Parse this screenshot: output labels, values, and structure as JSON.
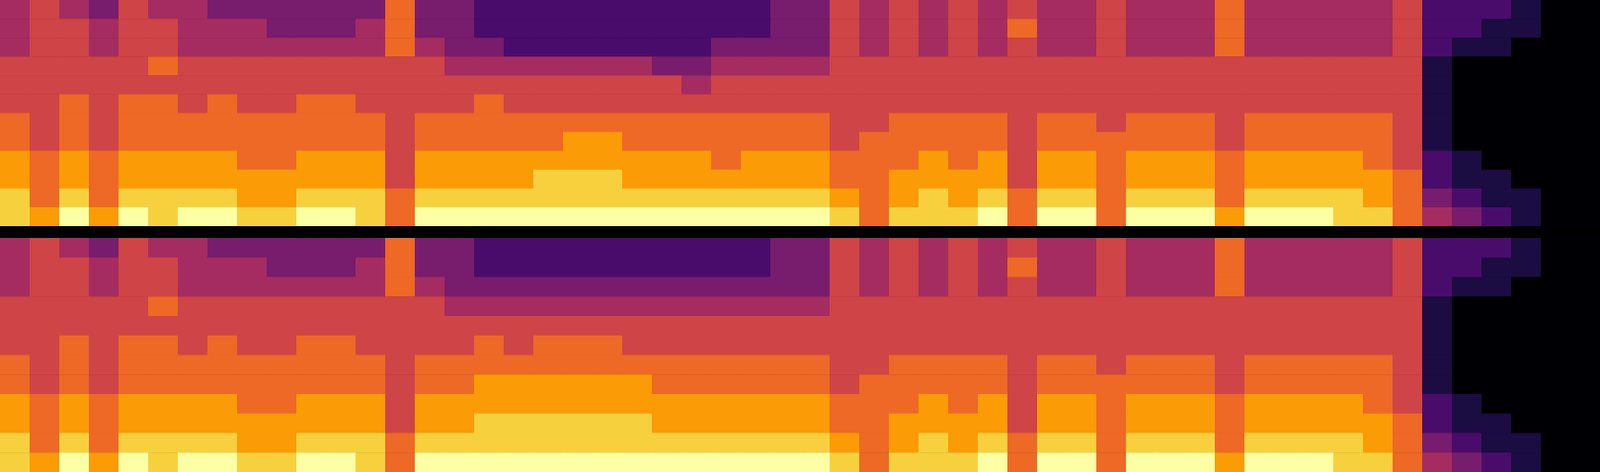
{
  "chart_data": [
    {
      "type": "heatmap",
      "tick_labels": false,
      "zlim": [
        0,
        9
      ],
      "cells": [
        [
          4,
          4,
          4,
          5,
          5,
          5,
          6,
          6,
          7,
          7,
          8,
          8
        ],
        [
          5,
          5,
          5,
          5,
          5,
          5,
          5,
          5,
          6,
          6,
          6,
          7
        ],
        [
          4,
          5,
          5,
          5,
          5,
          6,
          6,
          6,
          7,
          7,
          8,
          9
        ],
        [
          3,
          4,
          4,
          5,
          5,
          5,
          5,
          5,
          6,
          6,
          6,
          7
        ],
        [
          5,
          5,
          5,
          5,
          5,
          6,
          6,
          6,
          7,
          7,
          8,
          9
        ],
        [
          4,
          5,
          5,
          6,
          5,
          6,
          6,
          6,
          7,
          7,
          8,
          8
        ],
        [
          4,
          4,
          4,
          5,
          5,
          5,
          6,
          6,
          7,
          7,
          8,
          9
        ],
        [
          3,
          4,
          4,
          5,
          5,
          6,
          6,
          6,
          7,
          7,
          8,
          9
        ],
        [
          3,
          4,
          4,
          5,
          5,
          5,
          6,
          6,
          6,
          7,
          7,
          8
        ],
        [
          3,
          3,
          4,
          5,
          5,
          5,
          6,
          6,
          6,
          7,
          7,
          8
        ],
        [
          3,
          3,
          4,
          5,
          5,
          6,
          6,
          6,
          7,
          7,
          8,
          9
        ],
        [
          3,
          3,
          4,
          5,
          5,
          6,
          6,
          6,
          7,
          7,
          8,
          9
        ],
        [
          3,
          4,
          4,
          5,
          5,
          5,
          6,
          6,
          7,
          7,
          8,
          8
        ],
        [
          6,
          6,
          6,
          5,
          5,
          5,
          5,
          5,
          5,
          5,
          6,
          6
        ],
        [
          3,
          3,
          4,
          5,
          5,
          5,
          6,
          6,
          7,
          7,
          8,
          9
        ],
        [
          3,
          3,
          3,
          4,
          5,
          5,
          6,
          6,
          7,
          7,
          8,
          9
        ],
        [
          2,
          2,
          3,
          4,
          5,
          6,
          6,
          6,
          7,
          7,
          8,
          9
        ],
        [
          2,
          2,
          2,
          4,
          5,
          5,
          6,
          6,
          7,
          7,
          8,
          9
        ],
        [
          2,
          2,
          2,
          4,
          5,
          5,
          6,
          6,
          7,
          8,
          8,
          9
        ],
        [
          2,
          2,
          2,
          4,
          5,
          5,
          6,
          7,
          7,
          8,
          8,
          9
        ],
        [
          2,
          2,
          2,
          4,
          5,
          5,
          6,
          7,
          7,
          8,
          8,
          9
        ],
        [
          2,
          2,
          2,
          4,
          5,
          5,
          6,
          6,
          7,
          7,
          8,
          9
        ],
        [
          2,
          2,
          2,
          3,
          5,
          5,
          6,
          6,
          7,
          7,
          8,
          9
        ],
        [
          2,
          2,
          2,
          3,
          4,
          5,
          6,
          6,
          7,
          7,
          8,
          9
        ],
        [
          2,
          2,
          3,
          4,
          5,
          5,
          6,
          6,
          6,
          7,
          8,
          9
        ],
        [
          2,
          2,
          3,
          4,
          5,
          5,
          6,
          6,
          7,
          7,
          8,
          9
        ],
        [
          3,
          3,
          3,
          4,
          5,
          5,
          6,
          6,
          7,
          7,
          8,
          9
        ],
        [
          3,
          3,
          3,
          4,
          5,
          5,
          6,
          6,
          7,
          7,
          8,
          9
        ],
        [
          5,
          5,
          5,
          5,
          5,
          5,
          5,
          5,
          6,
          6,
          7,
          8
        ],
        [
          4,
          4,
          4,
          5,
          5,
          5,
          5,
          6,
          6,
          6,
          6,
          6
        ],
        [
          5,
          5,
          5,
          5,
          5,
          5,
          6,
          6,
          6,
          7,
          7,
          8
        ],
        [
          4,
          4,
          4,
          5,
          5,
          5,
          6,
          6,
          7,
          7,
          8,
          8
        ],
        [
          5,
          5,
          5,
          5,
          5,
          5,
          6,
          6,
          6,
          7,
          7,
          8
        ],
        [
          4,
          4,
          4,
          5,
          5,
          5,
          6,
          6,
          7,
          7,
          8,
          9
        ],
        [
          5,
          6,
          5,
          5,
          5,
          5,
          5,
          5,
          5,
          5,
          6,
          6
        ],
        [
          4,
          4,
          4,
          5,
          5,
          5,
          6,
          6,
          7,
          7,
          8,
          9
        ],
        [
          4,
          4,
          4,
          5,
          5,
          5,
          6,
          6,
          7,
          7,
          8,
          9
        ],
        [
          5,
          5,
          5,
          5,
          5,
          5,
          5,
          6,
          6,
          6,
          6,
          6
        ],
        [
          4,
          4,
          4,
          5,
          5,
          5,
          6,
          6,
          7,
          7,
          8,
          9
        ],
        [
          4,
          4,
          4,
          5,
          5,
          5,
          6,
          6,
          7,
          7,
          8,
          9
        ],
        [
          4,
          4,
          4,
          5,
          5,
          5,
          6,
          6,
          7,
          7,
          8,
          9
        ],
        [
          6,
          6,
          6,
          5,
          5,
          5,
          5,
          5,
          6,
          6,
          6,
          7
        ],
        [
          4,
          4,
          4,
          5,
          5,
          5,
          6,
          6,
          7,
          7,
          8,
          9
        ],
        [
          4,
          4,
          4,
          5,
          5,
          5,
          6,
          6,
          7,
          7,
          8,
          9
        ],
        [
          4,
          4,
          4,
          5,
          5,
          5,
          6,
          6,
          7,
          7,
          8,
          9
        ],
        [
          4,
          4,
          4,
          5,
          5,
          5,
          6,
          6,
          7,
          7,
          8,
          8
        ],
        [
          4,
          4,
          4,
          5,
          5,
          5,
          6,
          6,
          6,
          7,
          7,
          8
        ],
        [
          5,
          5,
          5,
          5,
          5,
          5,
          5,
          5,
          5,
          6,
          6,
          6
        ],
        [
          2,
          2,
          2,
          1,
          1,
          1,
          1,
          1,
          2,
          2,
          3,
          4
        ],
        [
          2,
          2,
          1,
          0,
          0,
          0,
          0,
          0,
          1,
          1,
          2,
          3
        ],
        [
          2,
          1,
          1,
          0,
          0,
          0,
          0,
          0,
          0,
          1,
          1,
          2
        ],
        [
          1,
          1,
          0,
          0,
          0,
          0,
          0,
          0,
          0,
          0,
          1,
          1
        ],
        [
          0,
          0,
          0,
          0,
          0,
          0,
          0,
          0,
          0,
          0,
          0,
          0
        ],
        [
          0,
          0,
          0,
          0,
          0,
          0,
          0,
          0,
          0,
          0,
          0,
          0
        ]
      ]
    },
    {
      "type": "heatmap",
      "tick_labels": false,
      "zlim": [
        0,
        9
      ],
      "cells": [
        [
          4,
          4,
          4,
          5,
          5,
          5,
          6,
          6,
          7,
          7,
          8,
          8
        ],
        [
          5,
          5,
          5,
          5,
          5,
          5,
          5,
          5,
          6,
          6,
          6,
          7
        ],
        [
          4,
          5,
          5,
          5,
          5,
          6,
          6,
          6,
          7,
          7,
          8,
          9
        ],
        [
          3,
          4,
          4,
          5,
          5,
          5,
          5,
          5,
          6,
          6,
          6,
          7
        ],
        [
          5,
          5,
          5,
          5,
          5,
          6,
          6,
          6,
          7,
          7,
          8,
          9
        ],
        [
          4,
          5,
          5,
          6,
          5,
          6,
          6,
          6,
          7,
          7,
          8,
          8
        ],
        [
          4,
          4,
          4,
          5,
          5,
          5,
          6,
          6,
          7,
          7,
          8,
          9
        ],
        [
          3,
          4,
          4,
          5,
          5,
          6,
          6,
          6,
          7,
          7,
          8,
          9
        ],
        [
          3,
          4,
          4,
          5,
          5,
          5,
          6,
          6,
          6,
          7,
          7,
          8
        ],
        [
          3,
          3,
          4,
          5,
          5,
          5,
          6,
          6,
          6,
          7,
          7,
          8
        ],
        [
          3,
          3,
          4,
          5,
          5,
          6,
          6,
          6,
          7,
          7,
          8,
          9
        ],
        [
          3,
          3,
          4,
          5,
          5,
          6,
          6,
          6,
          7,
          7,
          8,
          9
        ],
        [
          3,
          4,
          4,
          5,
          5,
          5,
          6,
          6,
          7,
          7,
          8,
          8
        ],
        [
          6,
          6,
          6,
          5,
          5,
          5,
          5,
          5,
          5,
          5,
          6,
          6
        ],
        [
          3,
          3,
          4,
          5,
          5,
          5,
          6,
          6,
          7,
          7,
          8,
          9
        ],
        [
          3,
          3,
          3,
          4,
          5,
          5,
          6,
          6,
          7,
          7,
          8,
          9
        ],
        [
          2,
          2,
          3,
          4,
          5,
          6,
          6,
          7,
          7,
          8,
          8,
          9
        ],
        [
          2,
          2,
          3,
          4,
          5,
          5,
          6,
          7,
          7,
          8,
          8,
          9
        ],
        [
          2,
          2,
          3,
          4,
          5,
          6,
          6,
          7,
          7,
          8,
          8,
          9
        ],
        [
          2,
          2,
          3,
          4,
          5,
          6,
          6,
          7,
          7,
          8,
          8,
          9
        ],
        [
          2,
          2,
          3,
          4,
          5,
          6,
          6,
          7,
          7,
          8,
          8,
          9
        ],
        [
          2,
          2,
          3,
          4,
          5,
          5,
          6,
          7,
          7,
          8,
          8,
          9
        ],
        [
          2,
          2,
          3,
          4,
          5,
          5,
          6,
          6,
          7,
          7,
          8,
          9
        ],
        [
          2,
          2,
          3,
          4,
          5,
          5,
          6,
          6,
          7,
          7,
          8,
          9
        ],
        [
          2,
          2,
          3,
          4,
          5,
          5,
          6,
          6,
          7,
          7,
          8,
          9
        ],
        [
          2,
          2,
          3,
          4,
          5,
          5,
          6,
          6,
          7,
          7,
          8,
          9
        ],
        [
          3,
          3,
          3,
          4,
          5,
          5,
          6,
          6,
          7,
          7,
          8,
          9
        ],
        [
          3,
          3,
          3,
          4,
          5,
          5,
          6,
          6,
          7,
          7,
          8,
          9
        ],
        [
          5,
          5,
          5,
          5,
          5,
          5,
          5,
          5,
          6,
          6,
          7,
          8
        ],
        [
          4,
          4,
          4,
          5,
          5,
          5,
          5,
          6,
          6,
          6,
          6,
          6
        ],
        [
          5,
          5,
          5,
          5,
          5,
          5,
          6,
          6,
          6,
          7,
          7,
          8
        ],
        [
          4,
          4,
          4,
          5,
          5,
          5,
          6,
          6,
          7,
          7,
          8,
          8
        ],
        [
          5,
          5,
          5,
          5,
          5,
          5,
          6,
          6,
          6,
          7,
          7,
          8
        ],
        [
          4,
          4,
          4,
          5,
          5,
          5,
          6,
          6,
          7,
          7,
          8,
          9
        ],
        [
          5,
          6,
          5,
          5,
          5,
          5,
          5,
          5,
          5,
          5,
          6,
          6
        ],
        [
          4,
          4,
          4,
          5,
          5,
          5,
          6,
          6,
          7,
          7,
          8,
          9
        ],
        [
          4,
          4,
          4,
          5,
          5,
          5,
          6,
          6,
          7,
          7,
          8,
          9
        ],
        [
          5,
          5,
          5,
          5,
          5,
          5,
          5,
          6,
          6,
          6,
          6,
          6
        ],
        [
          4,
          4,
          4,
          5,
          5,
          5,
          6,
          6,
          7,
          7,
          8,
          9
        ],
        [
          4,
          4,
          4,
          5,
          5,
          5,
          6,
          6,
          7,
          7,
          8,
          9
        ],
        [
          4,
          4,
          4,
          5,
          5,
          5,
          6,
          6,
          7,
          7,
          8,
          9
        ],
        [
          6,
          6,
          6,
          5,
          5,
          5,
          5,
          5,
          6,
          6,
          6,
          7
        ],
        [
          4,
          4,
          4,
          5,
          5,
          5,
          6,
          6,
          7,
          7,
          8,
          9
        ],
        [
          4,
          4,
          4,
          5,
          5,
          5,
          6,
          6,
          7,
          7,
          8,
          9
        ],
        [
          4,
          4,
          4,
          5,
          5,
          5,
          6,
          6,
          7,
          7,
          8,
          9
        ],
        [
          4,
          4,
          4,
          5,
          5,
          5,
          6,
          6,
          7,
          7,
          8,
          8
        ],
        [
          4,
          4,
          4,
          5,
          5,
          5,
          6,
          6,
          6,
          7,
          7,
          8
        ],
        [
          5,
          5,
          5,
          5,
          5,
          5,
          5,
          5,
          5,
          6,
          6,
          6
        ],
        [
          2,
          2,
          2,
          1,
          1,
          1,
          1,
          1,
          2,
          2,
          3,
          4
        ],
        [
          2,
          2,
          1,
          0,
          0,
          0,
          0,
          0,
          1,
          1,
          2,
          3
        ],
        [
          2,
          1,
          1,
          0,
          0,
          0,
          0,
          0,
          0,
          1,
          1,
          2
        ],
        [
          1,
          1,
          0,
          0,
          0,
          0,
          0,
          0,
          0,
          0,
          1,
          1
        ],
        [
          0,
          0,
          0,
          0,
          0,
          0,
          0,
          0,
          0,
          0,
          0,
          0
        ],
        [
          0,
          0,
          0,
          0,
          0,
          0,
          0,
          0,
          0,
          0,
          0,
          0
        ]
      ]
    }
  ]
}
